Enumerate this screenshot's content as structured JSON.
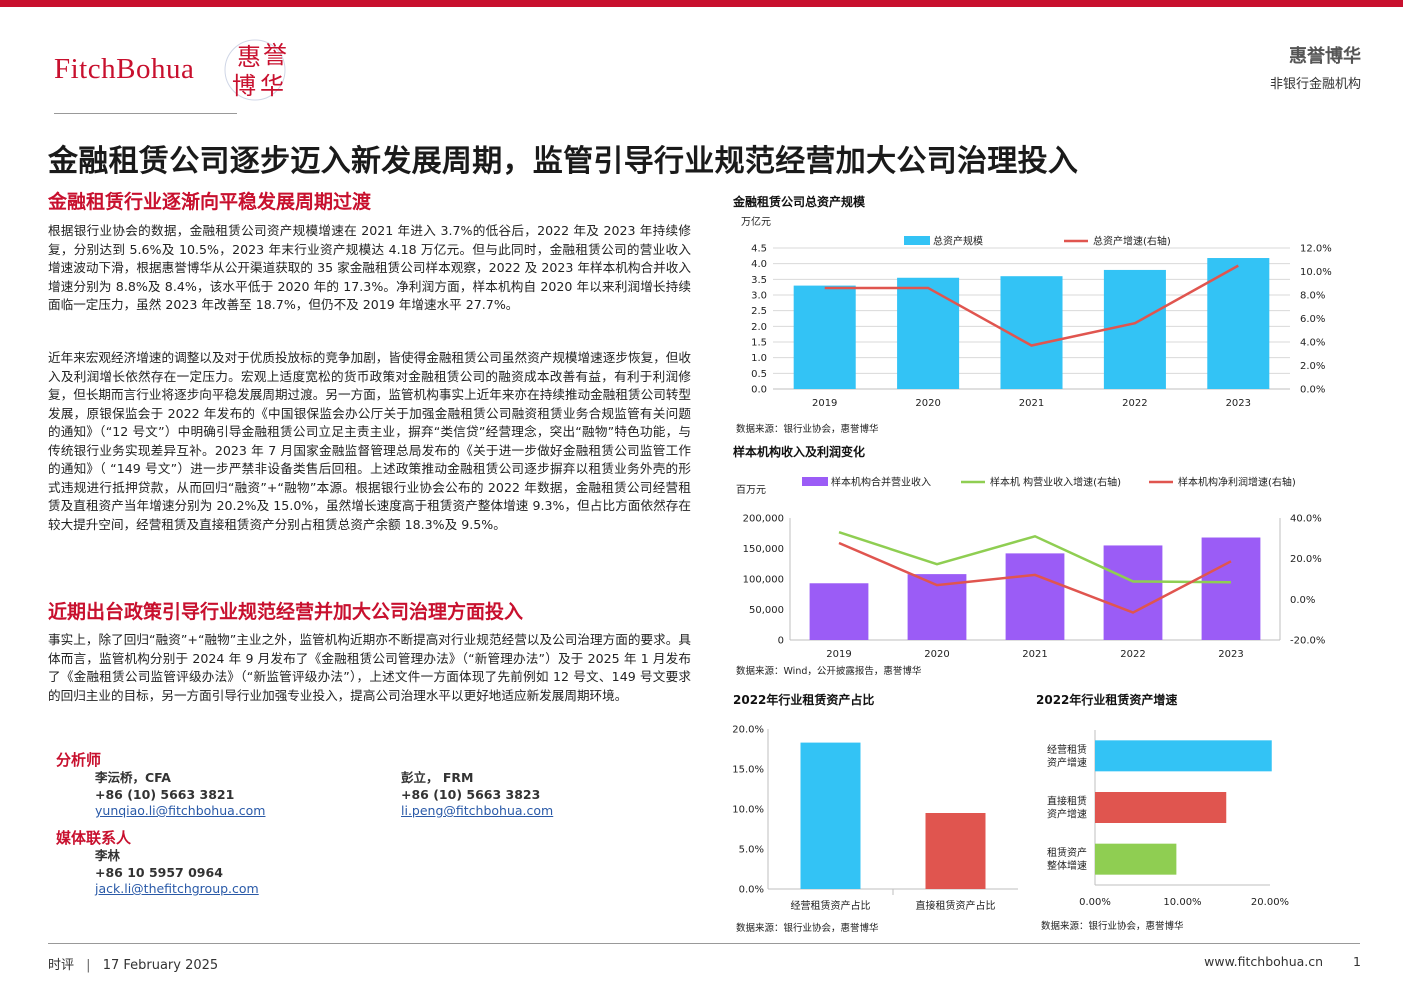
{
  "header": {
    "logo_text": "FitchBohua",
    "logo_seal": "惠誉博华",
    "brand_name": "惠誉博华",
    "brand_sub": "非银行金融机构"
  },
  "title": "金融租赁公司逐步迈入新发展周期，监管引导行业规范经营加大公司治理投入",
  "sections": [
    {
      "heading": "金融租赁行业逐渐向平稳发展周期过渡",
      "paragraphs": [
        "根据银行业协会的数据，金融租赁公司资产规模增速在 2021 年进入 3.7%的低谷后，2022 年及 2023 年持续修复，分别达到 5.6%及 10.5%，2023 年末行业资产规模达 4.18 万亿元。但与此同时，金融租赁公司的营业收入增速波动下滑，根据惠誉博华从公开渠道获取的 35 家金融租赁公司样本观察，2022 及 2023 年样本机构合并收入增速分别为 8.8%及 8.4%，该水平低于 2020 年的 17.3%。净利润方面，样本机构自 2020 年以来利润增长持续面临一定压力，虽然 2023 年改善至 18.7%，但仍不及 2019 年增速水平 27.7%。",
        "近年来宏观经济增速的调整以及对于优质投放标的竞争加剧，皆使得金融租赁公司虽然资产规模增速逐步恢复，但收入及利润增长依然存在一定压力。宏观上适度宽松的货币政策对金融租赁公司的融资成本改善有益，有利于利润修复，但长期而言行业将逐步向平稳发展周期过渡。另一方面，监管机构事实上近年来亦在持续推动金融租赁公司转型发展，原银保监会于 2022 年发布的《中国银保监会办公厅关于加强金融租赁公司融资租赁业务合规监管有关问题的通知》（“12 号文”）中明确引导金融租赁公司立足主责主业，摒弃“类信贷”经营理念，突出“融物”特色功能，与传统银行业务实现差异互补。2023 年 7 月国家金融监督管理总局发布的《关于进一步做好金融租赁公司监管工作的通知》（ “149 号文”）进一步严禁非设备类售后回租。上述政策推动金融租赁公司逐步摒弃以租赁业务外壳的形式违规进行抵押贷款，从而回归“融资”+“融物”本源。根据银行业协会公布的 2022 年数据，金融租赁公司经营租赁及直租资产当年增速分别为 20.2%及 15.0%，虽然增长速度高于租赁资产整体增速 9.3%，但占比方面依然存在较大提升空间，经营租赁及直接租赁资产分别占租赁总资产余额 18.3%及 9.5%。"
      ]
    },
    {
      "heading": "近期出台政策引导行业规范经营并加大公司治理方面投入",
      "paragraphs": [
        "事实上，除了回归“融资”+“融物”主业之外，监管机构近期亦不断提高对行业规范经营以及公司治理方面的要求。具体而言，监管机构分别于 2024 年 9 月发布了《金融租赁公司管理办法》（“新管理办法”）及于 2025 年 1 月发布了《金融租赁公司监管评级办法》（“新监管评级办法”），上述文件一方面体现了先前例如 12 号文、149 号文要求的回归主业的目标，另一方面引导行业加强专业投入，提高公司治理水平以更好地适应新发展周期环境。"
      ]
    }
  ],
  "contacts": {
    "analyst_heading": "分析师",
    "analysts": [
      {
        "name": "李沄桥，CFA",
        "phone": "+86 (10) 5663 3821",
        "email": "yunqiao.li@fitchbohua.com"
      },
      {
        "name": "彭立， FRM",
        "phone": "+86 (10) 5663 3823",
        "email": "li.peng@fitchbohua.com"
      }
    ],
    "media_heading": "媒体联系人",
    "media": {
      "name": "李林",
      "phone": "+86 10 5957 0964",
      "email": "jack.li@thefitchgroup.com"
    }
  },
  "chart_data": [
    {
      "type": "bar",
      "title": "金融租赁公司总资产规模",
      "ylabel": "万亿元",
      "categories": [
        "2019",
        "2020",
        "2021",
        "2022",
        "2023"
      ],
      "series": [
        {
          "name": "总资产规模",
          "type": "bar",
          "axis": "left",
          "color": "#33c3f5",
          "values": [
            3.3,
            3.55,
            3.6,
            3.8,
            4.18
          ]
        },
        {
          "name": "总资产增速(右轴)",
          "type": "line",
          "axis": "right",
          "color": "#e0554f",
          "values": [
            8.6,
            8.6,
            3.7,
            5.6,
            10.5
          ]
        }
      ],
      "ylim": [
        0,
        4.5
      ],
      "yticks": [
        "0.0",
        "0.5",
        "1.0",
        "1.5",
        "2.0",
        "2.5",
        "3.0",
        "3.5",
        "4.0",
        "4.5"
      ],
      "y2lim": [
        0,
        12
      ],
      "y2ticks": [
        "0.0%",
        "2.0%",
        "4.0%",
        "6.0%",
        "8.0%",
        "10.0%",
        "12.0%"
      ],
      "legend": "top",
      "grid": true,
      "source": "数据来源：银行业协会，惠誉博华"
    },
    {
      "type": "bar",
      "title": "样本机构收入及利润变化",
      "ylabel": "百万元",
      "categories": [
        "2019",
        "2020",
        "2021",
        "2022",
        "2023"
      ],
      "series": [
        {
          "name": "样本机构合并营业收入",
          "type": "bar",
          "axis": "left",
          "color": "#9b5cf6",
          "values": [
            93000,
            108000,
            142000,
            155000,
            168000
          ]
        },
        {
          "name": "样本机 构营业收入增速(右轴)",
          "type": "line",
          "axis": "right",
          "color": "#8fce52",
          "values": [
            33,
            17.3,
            31,
            8.8,
            8.4
          ]
        },
        {
          "name": "样本机构净利润增速(右轴)",
          "type": "line",
          "axis": "right",
          "color": "#e0554f",
          "values": [
            27.7,
            7,
            12,
            -6.5,
            18.7
          ]
        }
      ],
      "ylim": [
        0,
        200000
      ],
      "yticks": [
        "0",
        "50,000",
        "100,000",
        "150,000",
        "200,000"
      ],
      "y2lim": [
        -20,
        40
      ],
      "y2ticks": [
        "-20.0%",
        "0.0%",
        "20.0%",
        "40.0%"
      ],
      "legend": "top",
      "grid": false,
      "source": "数据来源：Wind，公开披露报告，惠誉博华"
    },
    {
      "type": "bar",
      "title": "2022年行业租赁资产占比",
      "categories": [
        "经营租赁资产占比",
        "直接租赁资产占比"
      ],
      "values": [
        18.3,
        9.5
      ],
      "colors": [
        "#33c3f5",
        "#e0554f"
      ],
      "ylim": [
        0,
        20
      ],
      "yticks": [
        "0.0%",
        "5.0%",
        "10.0%",
        "15.0%",
        "20.0%"
      ],
      "source": "数据来源：银行业协会，惠誉博华"
    },
    {
      "type": "bar",
      "orientation": "horizontal",
      "title": "2022年行业租赁资产增速",
      "categories": [
        "经营租赁资产增速",
        "直接租赁资产增速",
        "租赁资产整体增速"
      ],
      "values": [
        20.2,
        15.0,
        9.3
      ],
      "colors": [
        "#33c3f5",
        "#e0554f",
        "#8fce52"
      ],
      "xlim": [
        0,
        20
      ],
      "xticks": [
        "0.00%",
        "10.00%",
        "20.00%"
      ],
      "source": "数据来源：银行业协会，惠誉博华"
    }
  ],
  "footer": {
    "left_label": "时评",
    "date": "17 February 2025",
    "website": "www.fitchbohua.cn",
    "page": "1"
  }
}
